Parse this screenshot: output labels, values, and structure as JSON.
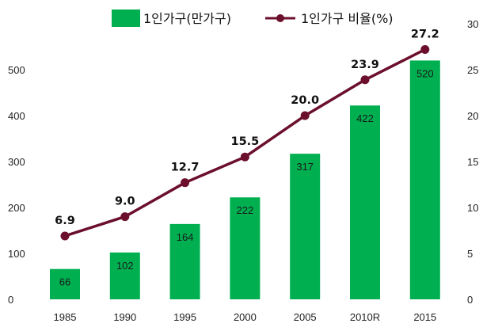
{
  "chart_data": {
    "type": "bar+line",
    "categories": [
      "1985",
      "1990",
      "1995",
      "2000",
      "2005",
      "2010R",
      "2015"
    ],
    "series": [
      {
        "name": "1인가구(만가구)",
        "type": "bar",
        "axis": "left",
        "values": [
          66,
          102,
          164,
          222,
          317,
          422,
          520
        ],
        "labels": [
          "66",
          "102",
          "164",
          "222",
          "317",
          "422",
          "520"
        ]
      },
      {
        "name": "1인가구 비율(%)",
        "type": "line",
        "axis": "right",
        "values": [
          6.9,
          9.0,
          12.7,
          15.5,
          20.0,
          23.9,
          27.2
        ],
        "labels": [
          "6.9",
          "9.0",
          "12.7",
          "15.5",
          "20.0",
          "23.9",
          "27.2"
        ]
      }
    ],
    "left_axis": {
      "ylim": [
        0,
        600
      ],
      "ticks": [
        "0",
        "100",
        "200",
        "300",
        "400",
        "500"
      ]
    },
    "right_axis": {
      "ylim": [
        0,
        30
      ],
      "ticks": [
        "0",
        "5",
        "10",
        "15",
        "20",
        "25",
        "30"
      ]
    },
    "legend_placement": "top",
    "grid": false,
    "colors": {
      "bar": "#00b050",
      "line": "#6b0f2c",
      "marker": "#6b0f2c"
    }
  }
}
